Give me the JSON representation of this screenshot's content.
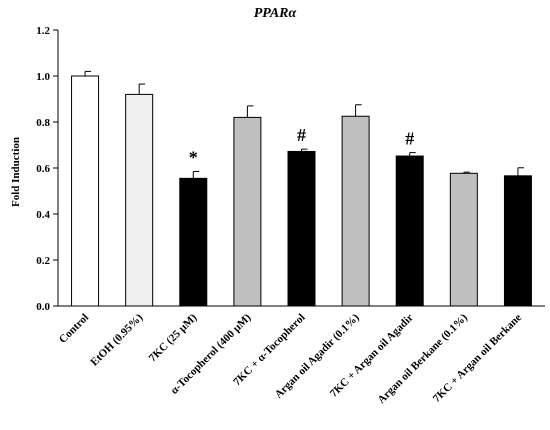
{
  "chart_data": {
    "type": "bar",
    "title": "PPARα",
    "ylabel": "Fold Induction",
    "xlabel": "",
    "ylim": [
      0,
      1.2
    ],
    "yticks": [
      "0.0",
      "0.2",
      "0.4",
      "0.6",
      "0.8",
      "1.0",
      "1.2"
    ],
    "categories": [
      "Control",
      "EtOH (0.95%)",
      "7KC (25 µM)",
      "α-Tocopherol (400 µM)",
      "7KC + α-Tocopherol",
      "Argan oil  Agadir (0.1%)",
      "7KC + Argan oil  Agadir",
      "Argan oil  Berkane (0.1%)",
      "7KC + Argan oil  Berkane"
    ],
    "values": [
      1.0,
      0.92,
      0.555,
      0.82,
      0.672,
      0.825,
      0.652,
      0.577,
      0.566
    ],
    "errors": [
      0.02,
      0.045,
      0.03,
      0.05,
      0.01,
      0.05,
      0.015,
      0.005,
      0.035
    ],
    "colors": [
      "#ffffff",
      "#f0f0f0",
      "#000000",
      "#c0c0c0",
      "#000000",
      "#c0c0c0",
      "#000000",
      "#c0c0c0",
      "#000000"
    ],
    "annotations": [
      "",
      "",
      "*",
      "",
      "#",
      "",
      "#",
      "",
      ""
    ],
    "grid": false
  }
}
